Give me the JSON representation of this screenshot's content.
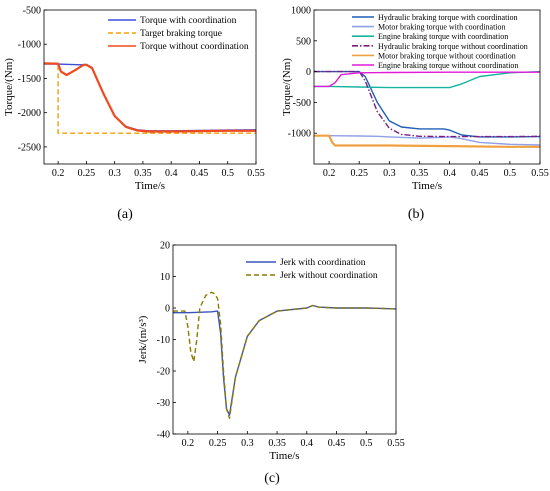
{
  "colors": {
    "with_coord": "#3b4fd8",
    "without_coord": "#f04a1e",
    "target": "#f5a000",
    "hydraulic": "#1f5fb4",
    "motor": "#8fa0e6",
    "engine": "#14b4a0",
    "hydraulic_wo": "#7a1e82",
    "motor_wo": "#f0a040",
    "engine_wo": "#e01ad8",
    "jerk_with": "#3a55b8",
    "jerk_wo": "#8c7a00"
  },
  "captions": {
    "a": "(a)",
    "b": "(b)",
    "c": "(c)"
  },
  "chart_data": [
    {
      "id": "a",
      "type": "line",
      "xlabel": "Time/s",
      "ylabel": "Torque/(Nm)",
      "xlim": [
        0.175,
        0.55
      ],
      "ylim": [
        -2750,
        -500
      ],
      "xticks": [
        0.2,
        0.25,
        0.3,
        0.35,
        0.4,
        0.45,
        0.5,
        0.55
      ],
      "yticks": [
        -500,
        -1000,
        -1500,
        -2000,
        -2500
      ],
      "xtick_labels": [
        "0.2",
        "0.25",
        "0.3",
        "0.35",
        "0.4",
        "0.45",
        "0.5",
        "0.55"
      ],
      "ytick_labels": [
        "-500",
        "-1000",
        "-1500",
        "-2000",
        "-2500"
      ],
      "legend_position": "top-right",
      "series": [
        {
          "name": "Torque with coordination",
          "color_key": "with_coord",
          "style": "solid",
          "x": [
            0.175,
            0.2,
            0.22,
            0.24,
            0.25,
            0.26,
            0.28,
            0.3,
            0.32,
            0.34,
            0.36,
            0.4,
            0.45,
            0.5,
            0.55
          ],
          "y": [
            -1290,
            -1290,
            -1295,
            -1300,
            -1295,
            -1340,
            -1720,
            -2050,
            -2200,
            -2250,
            -2265,
            -2265,
            -2260,
            -2255,
            -2250
          ]
        },
        {
          "name": "Target braking torque",
          "color_key": "target",
          "style": "dashed",
          "x": [
            0.175,
            0.2,
            0.2,
            0.55
          ],
          "y": [
            -1280,
            -1280,
            -2300,
            -2300
          ]
        },
        {
          "name": "Torque without coordination",
          "color_key": "without_coord",
          "style": "solid",
          "x": [
            0.175,
            0.2,
            0.205,
            0.215,
            0.23,
            0.245,
            0.25,
            0.26,
            0.28,
            0.3,
            0.32,
            0.34,
            0.36,
            0.4,
            0.45,
            0.5,
            0.55
          ],
          "y": [
            -1280,
            -1285,
            -1400,
            -1450,
            -1380,
            -1300,
            -1300,
            -1350,
            -1720,
            -2050,
            -2210,
            -2260,
            -2275,
            -2275,
            -2270,
            -2265,
            -2265
          ]
        }
      ]
    },
    {
      "id": "b",
      "type": "line",
      "xlabel": "Time/s",
      "ylabel": "Torque/(Nm)",
      "xlim": [
        0.175,
        0.55
      ],
      "ylim": [
        -1500,
        1000
      ],
      "xticks": [
        0.2,
        0.25,
        0.3,
        0.35,
        0.4,
        0.45,
        0.5,
        0.55
      ],
      "yticks": [
        1000,
        500,
        0,
        -500,
        -1000
      ],
      "xtick_labels": [
        "0.2",
        "0.25",
        "0.3",
        "0.35",
        "0.4",
        "0.45",
        "0.5",
        "0.55"
      ],
      "ytick_labels": [
        "1000",
        "500",
        "0",
        "-500",
        "-1000"
      ],
      "legend_position": "top-right",
      "series": [
        {
          "name": "Hydraulic braking torque with coordination",
          "color_key": "hydraulic",
          "style": "solid",
          "x": [
            0.175,
            0.25,
            0.26,
            0.28,
            0.3,
            0.32,
            0.35,
            0.39,
            0.4,
            0.42,
            0.45,
            0.5,
            0.55
          ],
          "y": [
            0,
            0,
            -80,
            -500,
            -800,
            -900,
            -930,
            -930,
            -950,
            -1030,
            -1060,
            -1060,
            -1055
          ]
        },
        {
          "name": "Motor braking torque with coordination",
          "color_key": "motor",
          "style": "solid",
          "x": [
            0.175,
            0.2,
            0.25,
            0.28,
            0.3,
            0.35,
            0.38,
            0.4,
            0.42,
            0.45,
            0.5,
            0.55
          ],
          "y": [
            -1040,
            -1040,
            -1045,
            -1050,
            -1060,
            -1080,
            -1070,
            -1060,
            -1090,
            -1150,
            -1180,
            -1190
          ]
        },
        {
          "name": "Engine braking torque with coordination",
          "color_key": "engine",
          "style": "solid",
          "x": [
            0.175,
            0.2,
            0.25,
            0.3,
            0.35,
            0.4,
            0.42,
            0.45,
            0.5,
            0.55
          ],
          "y": [
            -240,
            -240,
            -250,
            -260,
            -260,
            -260,
            -200,
            -80,
            -20,
            0
          ]
        },
        {
          "name": "Hydraulic braking torque without coordination",
          "color_key": "hydraulic_wo",
          "style": "dashdot",
          "x": [
            0.175,
            0.25,
            0.26,
            0.28,
            0.3,
            0.32,
            0.35,
            0.4,
            0.45,
            0.5,
            0.55
          ],
          "y": [
            0,
            0,
            -150,
            -650,
            -920,
            -1020,
            -1050,
            -1055,
            -1055,
            -1055,
            -1050
          ]
        },
        {
          "name": "Motor braking torque without coordination",
          "color_key": "motor_wo",
          "style": "solid",
          "x": [
            0.175,
            0.2,
            0.205,
            0.21,
            0.25,
            0.3,
            0.4,
            0.5,
            0.55
          ],
          "y": [
            -1040,
            -1040,
            -1150,
            -1200,
            -1200,
            -1200,
            -1210,
            -1220,
            -1220
          ]
        },
        {
          "name": "Engine braking torque without coordination",
          "color_key": "engine_wo",
          "style": "solid",
          "x": [
            0.175,
            0.2,
            0.21,
            0.22,
            0.25,
            0.3,
            0.4,
            0.55
          ],
          "y": [
            -240,
            -240,
            -180,
            -50,
            -20,
            -15,
            -10,
            -10
          ]
        }
      ]
    },
    {
      "id": "c",
      "type": "line",
      "xlabel": "Time/s",
      "ylabel": "Jerk/(m/s³)",
      "xlim": [
        0.175,
        0.55
      ],
      "ylim": [
        -40,
        20
      ],
      "xticks": [
        0.2,
        0.25,
        0.3,
        0.35,
        0.4,
        0.45,
        0.5,
        0.55
      ],
      "yticks": [
        20,
        10,
        0,
        -10,
        -20,
        -30,
        -40
      ],
      "xtick_labels": [
        "0.2",
        "0.25",
        "0.3",
        "0.35",
        "0.4",
        "0.45",
        "0.5",
        "0.55"
      ],
      "ytick_labels": [
        "20",
        "10",
        "0",
        "-10",
        "-20",
        "-30",
        "-40"
      ],
      "legend_position": "top-right",
      "series": [
        {
          "name": "Jerk with coordination",
          "color_key": "jerk_with",
          "style": "solid",
          "x": [
            0.175,
            0.2,
            0.24,
            0.25,
            0.255,
            0.26,
            0.265,
            0.27,
            0.28,
            0.3,
            0.32,
            0.35,
            0.4,
            0.41,
            0.42,
            0.45,
            0.5,
            0.55
          ],
          "y": [
            -1.5,
            -1.5,
            -1.2,
            -1.0,
            -8,
            -22,
            -32,
            -34,
            -22,
            -9,
            -4,
            -1,
            0,
            0.8,
            0.3,
            0,
            0,
            -0.3
          ]
        },
        {
          "name": "Jerk without coordination",
          "color_key": "jerk_wo",
          "style": "dashed",
          "x": [
            0.175,
            0.195,
            0.2,
            0.205,
            0.21,
            0.215,
            0.22,
            0.23,
            0.24,
            0.245,
            0.25,
            0.255,
            0.26,
            0.265,
            0.27,
            0.28,
            0.3,
            0.32,
            0.35,
            0.4,
            0.41,
            0.42,
            0.45,
            0.5,
            0.55
          ],
          "y": [
            -1,
            -1,
            -6,
            -14,
            -17,
            -10,
            0,
            4,
            5,
            4.5,
            3,
            -5,
            -20,
            -32,
            -35,
            -22,
            -9,
            -4,
            -1,
            0,
            0.8,
            0.3,
            0,
            0,
            -0.3
          ]
        }
      ]
    }
  ]
}
